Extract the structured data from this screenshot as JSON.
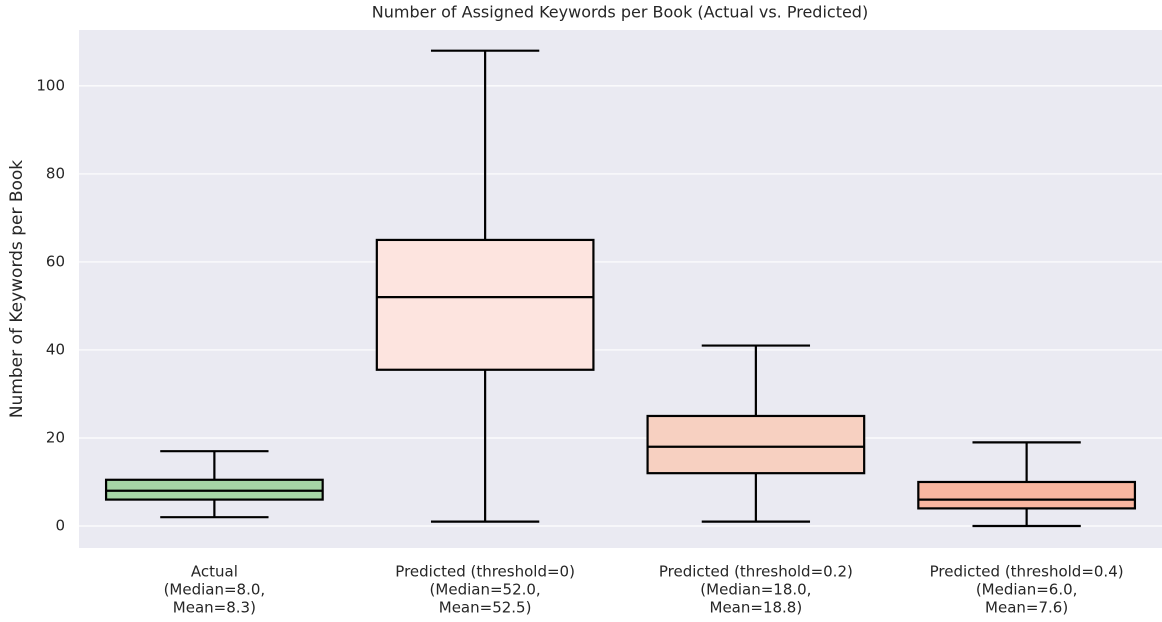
{
  "chart_data": {
    "type": "box",
    "title": "Number of Assigned Keywords per Book (Actual vs. Predicted)",
    "ylabel": "Number of Keywords per Book",
    "categories": [
      [
        "Actual",
        "(Median=8.0,",
        "Mean=8.3)"
      ],
      [
        "Predicted (threshold=0)",
        "(Median=52.0,",
        "Mean=52.5)"
      ],
      [
        "Predicted (threshold=0.2)",
        "(Median=18.0,",
        "Mean=18.8)"
      ],
      [
        "Predicted (threshold=0.4)",
        "(Median=6.0,",
        "Mean=7.6)"
      ]
    ],
    "boxes": [
      {
        "whislo": 2,
        "q1": 6,
        "med": 8,
        "q3": 10.5,
        "whishi": 17,
        "color": "#a6d5a6"
      },
      {
        "whislo": 1,
        "q1": 35.5,
        "med": 52,
        "q3": 65,
        "whishi": 108,
        "color": "#fde4df"
      },
      {
        "whislo": 1,
        "q1": 12,
        "med": 18,
        "q3": 25,
        "whishi": 41,
        "color": "#f7d0c1"
      },
      {
        "whislo": 0,
        "q1": 4,
        "med": 6,
        "q3": 10,
        "whishi": 19,
        "color": "#f9b6a0"
      }
    ],
    "ylim": [
      -5,
      112.7
    ],
    "yticks": [
      0,
      20,
      40,
      60,
      80,
      100
    ],
    "grid": true
  }
}
